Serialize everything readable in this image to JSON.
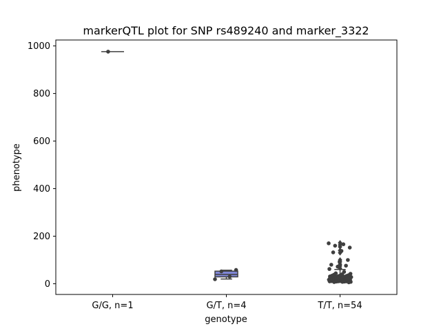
{
  "chart_data": {
    "type": "box",
    "title": "markerQTL plot for SNP rs489240 and marker_3322",
    "xlabel": "genotype",
    "ylabel": "phenotype",
    "ylim": [
      -45,
      1025
    ],
    "yticks": [
      0,
      200,
      400,
      600,
      800,
      1000
    ],
    "grid": false,
    "box_color": "#8087d6",
    "categories": [
      "G/G, n=1",
      "G/T, n=4",
      "T/T, n=54"
    ],
    "boxes": [
      {
        "category": "G/G, n=1",
        "whisker_low": 976,
        "q1": 976,
        "median": 976,
        "q3": 976,
        "whisker_high": 976
      },
      {
        "category": "G/T, n=4",
        "whisker_low": 20,
        "q1": 29,
        "median": 39,
        "q3": 53,
        "whisker_high": 57
      },
      {
        "category": "T/T, n=54",
        "whisker_low": 10,
        "q1": 14,
        "median": 22,
        "q3": 33,
        "whisker_high": 60
      }
    ],
    "outliers": [
      {
        "category": "T/T, n=54",
        "values": [
          65,
          75,
          82,
          92,
          100,
          130,
          140,
          155,
          163,
          172
        ]
      }
    ],
    "points": [
      {
        "category": "G/G, n=1",
        "values": [
          976
        ]
      },
      {
        "category": "G/T, n=4",
        "values": [
          19,
          30,
          52,
          58
        ]
      },
      {
        "category": "T/T, n=54",
        "values": [
          170,
          166,
          160,
          152,
          138,
          132,
          100,
          92,
          80,
          76,
          72,
          62,
          50,
          44,
          42,
          40,
          38,
          36,
          35,
          34,
          33,
          32,
          31,
          30,
          29,
          28,
          27,
          26,
          25,
          24,
          23,
          22,
          21,
          20,
          19,
          18,
          17,
          16,
          15,
          14,
          13,
          12,
          12,
          11,
          11,
          10,
          10,
          10,
          9,
          9,
          8,
          8,
          7,
          6
        ]
      }
    ]
  }
}
